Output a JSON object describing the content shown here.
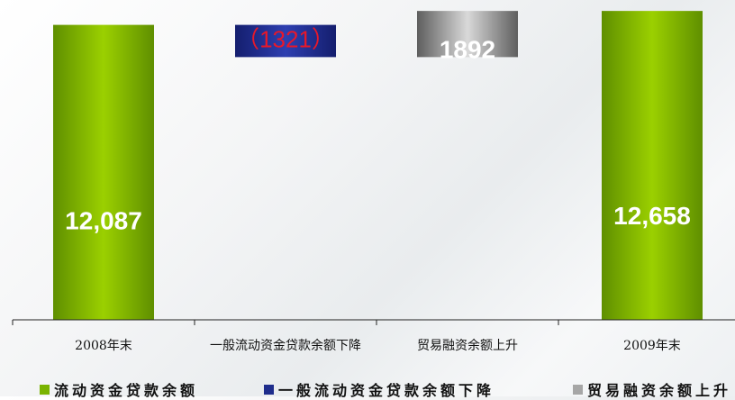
{
  "chart_data": {
    "type": "waterfall",
    "categories": [
      "2008年末",
      "一般流动资金贷款余额下降",
      "贸易融资余额上升",
      "2009年末"
    ],
    "bars": [
      {
        "base": 0,
        "value": 12087,
        "label": "12,087",
        "series": 0
      },
      {
        "base": 10766,
        "value": 1321,
        "label": "（1321）",
        "series": 1
      },
      {
        "base": 10766,
        "value": 1892,
        "label": "1892",
        "series": 2
      },
      {
        "base": 0,
        "value": 12658,
        "label": "12,658",
        "series": 0
      }
    ],
    "series": [
      {
        "name": "流动资金贷款余额",
        "color": "#79b300"
      },
      {
        "name": "一般流动资金贷款余额下降",
        "color": "#1f2d8c"
      },
      {
        "name": "贸易融资余额上升",
        "color": "#a6a6a6"
      }
    ],
    "ylim": [
      0,
      12700
    ],
    "legend": "bottom",
    "grid": false,
    "label_colors": {
      "default": "#ffffff",
      "negative": "#e8182a"
    }
  }
}
